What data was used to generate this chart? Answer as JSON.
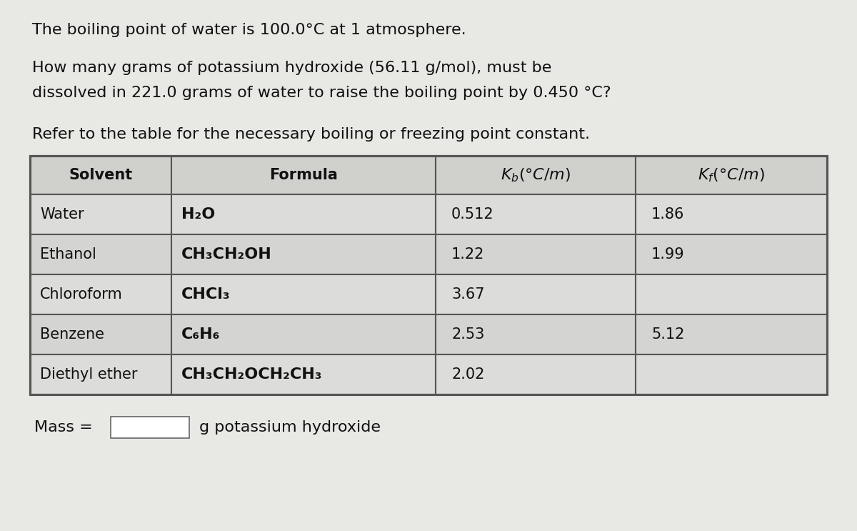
{
  "background_color": "#e8e8e5",
  "title_line1": "The boiling point of water is 100.0°C at 1 atmosphere.",
  "title_line2a": "How many grams of potassium hydroxide (56.11 g/mol), must be",
  "title_line2b": "dissolved in 221.0 grams of water to raise the boiling point by 0.450 °C?",
  "title_line3": "Refer to the table for the necessary boiling or freezing point constant.",
  "rows": [
    [
      "Water",
      "H₂O",
      "0.512",
      "1.86"
    ],
    [
      "Ethanol",
      "CH₃CH₂OH",
      "1.22",
      "1.99"
    ],
    [
      "Chloroform",
      "CHCl₃",
      "3.67",
      ""
    ],
    [
      "Benzene",
      "C₆H₆",
      "2.53",
      "5.12"
    ],
    [
      "Diethyl ether",
      "CH₃CH₂OCH₂CH₃",
      "2.02",
      ""
    ]
  ],
  "mass_label": "Mass = ",
  "mass_suffix": "g potassium hydroxide",
  "table_border_color": "#555555",
  "header_bg": "#d0d0cd",
  "row_bg_light": "#dcdcda",
  "row_bg_dark": "#d4d4d2",
  "text_color": "#111111",
  "font_size_text": 16,
  "font_size_table": 15
}
